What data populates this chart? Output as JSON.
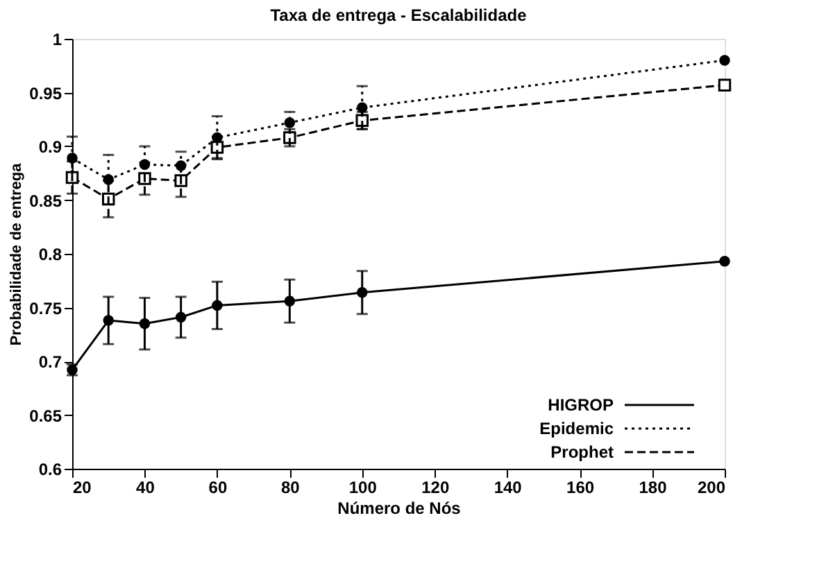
{
  "chart_data": {
    "type": "line",
    "title": "Taxa de entrega - Escalabilidade",
    "xlabel": "Número de Nós",
    "ylabel": "Probabilidade de entrega",
    "x": [
      20,
      30,
      40,
      50,
      60,
      80,
      100,
      200
    ],
    "series": [
      {
        "name": "HIGROP",
        "color": "#000000",
        "marker": "circle",
        "line_style": "solid",
        "values": [
          0.692,
          0.738,
          0.735,
          0.741,
          0.752,
          0.756,
          0.764,
          0.793
        ],
        "errors": [
          0.005,
          0.022,
          0.024,
          0.019,
          0.022,
          0.02,
          0.02,
          null
        ]
      },
      {
        "name": "Epidemic",
        "color": "#000000",
        "marker": "circle",
        "line_style": "dotted",
        "values": [
          0.889,
          0.869,
          0.883,
          0.882,
          0.908,
          0.922,
          0.936,
          0.98
        ],
        "errors": [
          0.02,
          0.023,
          0.017,
          0.013,
          0.02,
          0.01,
          0.02,
          null
        ]
      },
      {
        "name": "Prophet",
        "color": "#000000",
        "marker": "square",
        "line_style": "dashed",
        "values": [
          0.871,
          0.851,
          0.87,
          0.868,
          0.899,
          0.908,
          0.924,
          0.957
        ],
        "errors": [
          0.015,
          0.017,
          0.015,
          0.015,
          0.01,
          0.008,
          0.008,
          null
        ]
      }
    ],
    "xlim": [
      20,
      200
    ],
    "xticks": [
      20,
      40,
      60,
      80,
      100,
      120,
      140,
      160,
      180,
      200
    ],
    "ylim": [
      0.6,
      1
    ],
    "yticks": [
      0.6,
      0.65,
      0.7,
      0.75,
      0.8,
      0.85,
      0.9,
      0.95,
      1
    ],
    "grid": false,
    "legend": "bottom right"
  }
}
